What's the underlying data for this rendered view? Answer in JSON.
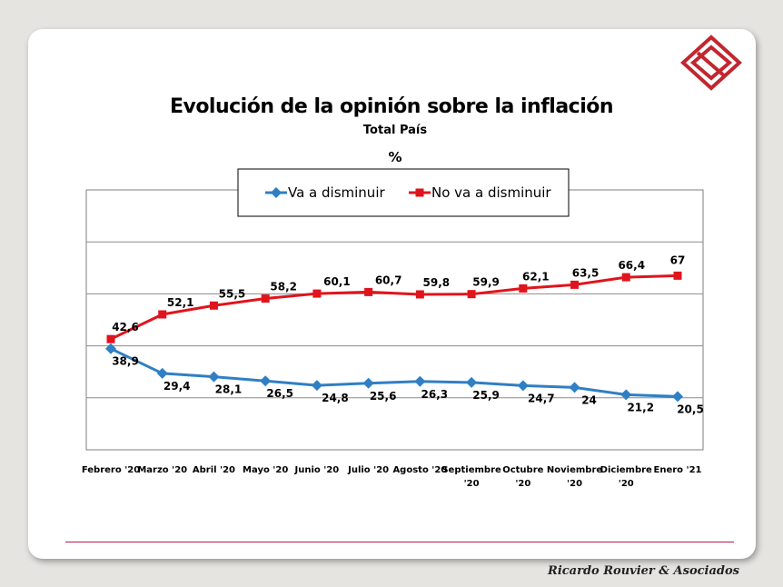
{
  "chart_data": {
    "type": "line",
    "title": "Evolución de la opinión sobre la inflación",
    "subtitle": "Total País",
    "unit": "%",
    "categories": [
      "Febrero '20",
      "Marzo '20",
      "Abril '20",
      "Mayo '20",
      "Junio '20",
      "Julio '20",
      "Agosto '20",
      "Septiembre '20",
      "Octubre '20",
      "Noviembre '20",
      "Diciembre '20",
      "Enero '21"
    ],
    "category_lines": [
      [
        "Febrero '20"
      ],
      [
        "Marzo '20"
      ],
      [
        "Abril '20"
      ],
      [
        "Mayo '20"
      ],
      [
        "Junio '20"
      ],
      [
        "Julio '20"
      ],
      [
        "Agosto '20"
      ],
      [
        "Septiembre",
        "'20"
      ],
      [
        "Octubre",
        "'20"
      ],
      [
        "Noviembre",
        "'20"
      ],
      [
        "Diciembre",
        "'20"
      ],
      [
        "Enero '21"
      ]
    ],
    "series": [
      {
        "name": "Va a disminuir",
        "color": "#2f7fc4",
        "marker": "diamond",
        "values": [
          38.9,
          29.4,
          28.1,
          26.5,
          24.8,
          25.6,
          26.3,
          25.9,
          24.7,
          24,
          21.2,
          20.5
        ],
        "labels": [
          "38,9",
          "29,4",
          "28,1",
          "26,5",
          "24,8",
          "25,6",
          "26,3",
          "25,9",
          "24,7",
          "24",
          "21,2",
          "20,5"
        ]
      },
      {
        "name": "No va a disminuir",
        "color": "#e0141c",
        "marker": "square",
        "values": [
          42.6,
          52.1,
          55.5,
          58.2,
          60.1,
          60.7,
          59.8,
          59.9,
          62.1,
          63.5,
          66.4,
          67
        ],
        "labels": [
          "42,6",
          "52,1",
          "55,5",
          "58,2",
          "60,1",
          "60,7",
          "59,8",
          "59,9",
          "62,1",
          "63,5",
          "66,4",
          "67"
        ]
      }
    ],
    "ylim": [
      0,
      100
    ],
    "gridlines": true,
    "y_tick_labels": false,
    "legend_position": "top"
  },
  "footer": {
    "credit": "Ricardo Rouvier & Asociados"
  },
  "colors": {
    "background": "#e6e4e1",
    "slide": "#ffffff",
    "footer_line": "#b5194a",
    "logo": "#c2262e"
  },
  "logo_icon": "rra-diamond-logo-icon"
}
